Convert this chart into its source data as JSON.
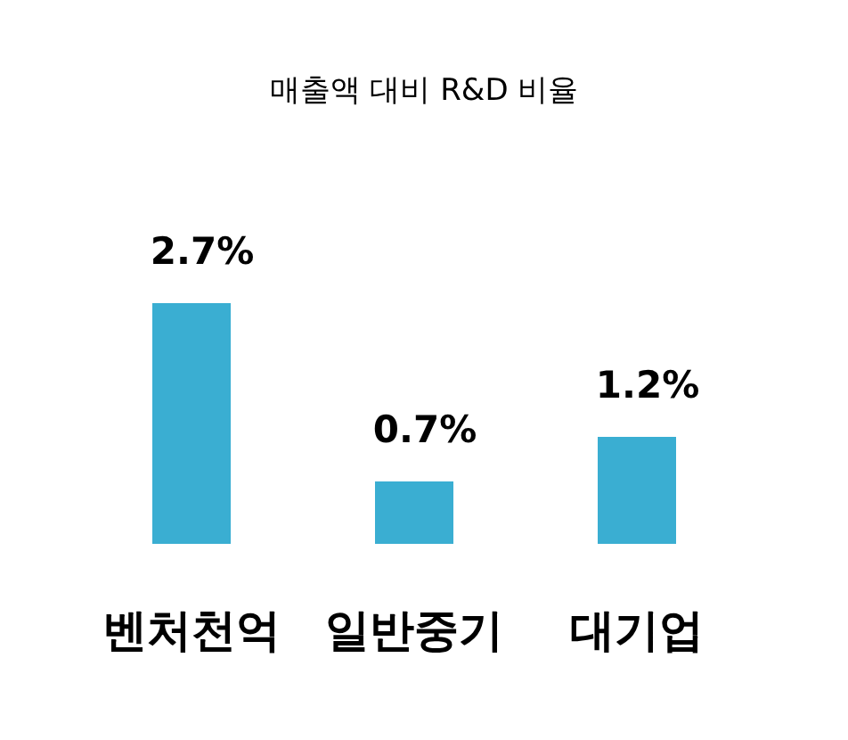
{
  "chart_data": {
    "type": "bar",
    "title": "매출액 대비 R&D 비율",
    "categories": [
      "벤처천억",
      "일반중기",
      "대기업"
    ],
    "values": [
      2.7,
      0.7,
      1.2
    ],
    "value_labels": [
      "2.7%",
      "0.7%",
      "1.2%"
    ],
    "color": "#3aaed2"
  }
}
